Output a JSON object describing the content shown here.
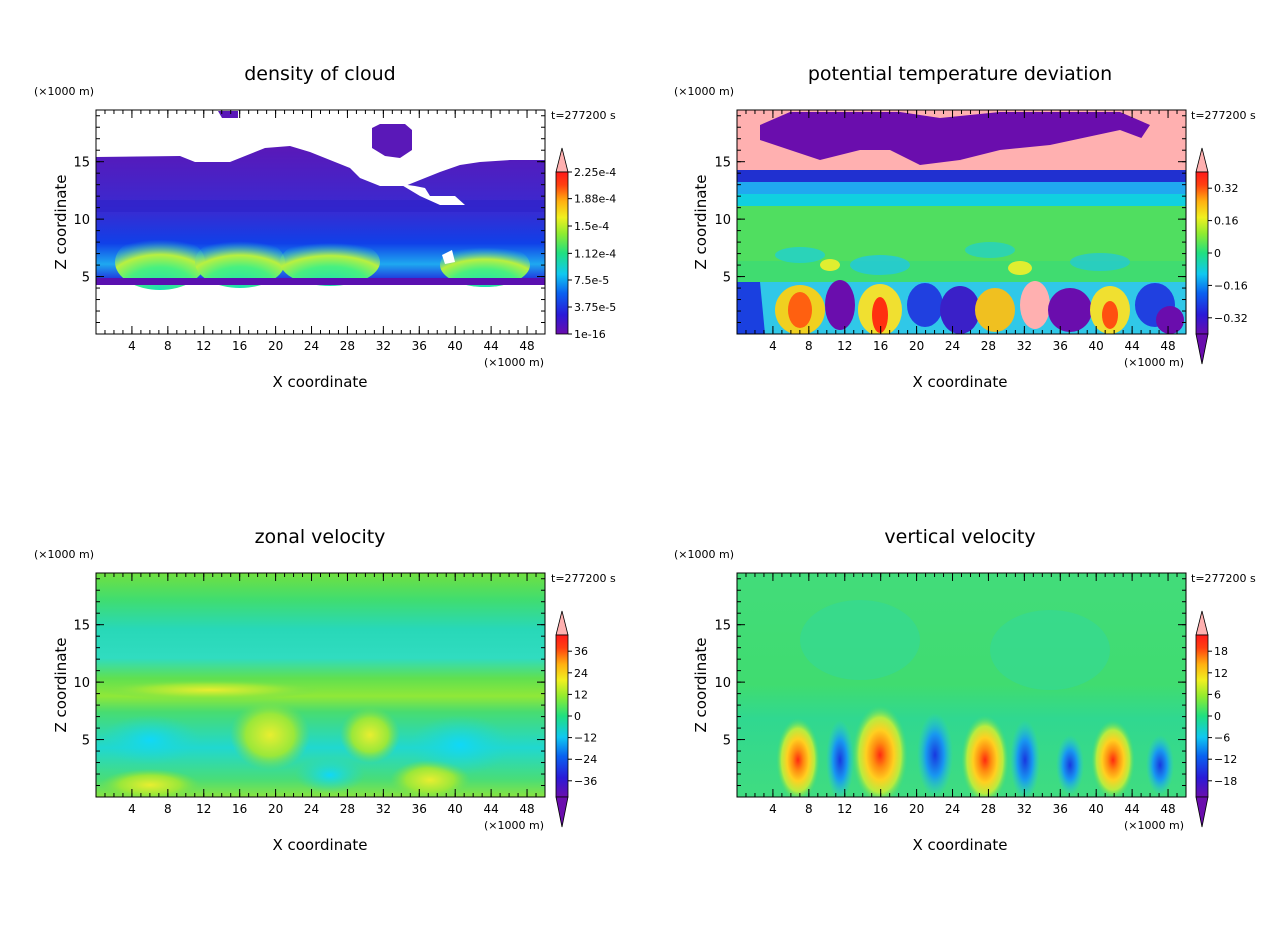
{
  "chart_data": [
    {
      "type": "heatmap",
      "title": "density of cloud",
      "xlabel": "X coordinate",
      "ylabel": "Z coordinate",
      "x_unit": "(×1000 m)",
      "y_unit": "(×1000 m)",
      "time_label": "t=277200 s",
      "xlim": [
        0,
        50
      ],
      "ylim": [
        0,
        19.5
      ],
      "x_ticks": [
        4,
        8,
        12,
        16,
        20,
        24,
        28,
        32,
        36,
        40,
        44,
        48
      ],
      "y_ticks": [
        5,
        10,
        15
      ],
      "colorbar_labels": [
        "1e-16",
        "3.75e-5",
        "7.5e-5",
        "1.12e-4",
        "1.5e-4",
        "1.88e-4",
        "2.25e-4"
      ],
      "colorbar_values": [
        1e-16,
        3.75e-05,
        7.5e-05,
        0.000112,
        0.00015,
        0.000188,
        0.000225
      ],
      "colors": {
        "low": "#6a0dad",
        "mid": "#00e0c0",
        "high": "#ff1a1a",
        "top": "#ffb0b0"
      }
    },
    {
      "type": "heatmap",
      "title": "potential temperature deviation",
      "xlabel": "X coordinate",
      "ylabel": "Z coordinate",
      "x_unit": "(×1000 m)",
      "y_unit": "(×1000 m)",
      "time_label": "t=277200 s",
      "xlim": [
        0,
        50
      ],
      "ylim": [
        0,
        19.5
      ],
      "x_ticks": [
        4,
        8,
        12,
        16,
        20,
        24,
        28,
        32,
        36,
        40,
        44,
        48
      ],
      "y_ticks": [
        5,
        10,
        15
      ],
      "colorbar_labels": [
        "−0.32",
        "−0.16",
        "0",
        "0.16",
        "0.32"
      ],
      "colorbar_values": [
        -0.32,
        -0.16,
        0,
        0.16,
        0.32
      ],
      "colors": {
        "low": "#6a0dad",
        "mid": "#33dd55",
        "high": "#ff1a1a",
        "top": "#ffb0b0"
      }
    },
    {
      "type": "heatmap",
      "title": "zonal velocity",
      "xlabel": "X coordinate",
      "ylabel": "Z coordinate",
      "x_unit": "(×1000 m)",
      "y_unit": "(×1000 m)",
      "time_label": "t=277200 s",
      "xlim": [
        0,
        50
      ],
      "ylim": [
        0,
        19.5
      ],
      "x_ticks": [
        4,
        8,
        12,
        16,
        20,
        24,
        28,
        32,
        36,
        40,
        44,
        48
      ],
      "y_ticks": [
        5,
        10,
        15
      ],
      "colorbar_labels": [
        "−36",
        "−24",
        "−12",
        "0",
        "12",
        "24",
        "36"
      ],
      "colorbar_values": [
        -36,
        -24,
        -12,
        0,
        12,
        24,
        36
      ],
      "colors": {
        "low": "#6a0dad",
        "mid": "#33dd55",
        "high": "#ff1a1a",
        "top": "#ffb0b0"
      }
    },
    {
      "type": "heatmap",
      "title": "vertical velocity",
      "xlabel": "X coordinate",
      "ylabel": "Z coordinate",
      "x_unit": "(×1000 m)",
      "y_unit": "(×1000 m)",
      "time_label": "t=277200 s",
      "xlim": [
        0,
        50
      ],
      "ylim": [
        0,
        19.5
      ],
      "x_ticks": [
        4,
        8,
        12,
        16,
        20,
        24,
        28,
        32,
        36,
        40,
        44,
        48
      ],
      "y_ticks": [
        5,
        10,
        15
      ],
      "colorbar_labels": [
        "−18",
        "−12",
        "−6",
        "0",
        "6",
        "12",
        "18"
      ],
      "colorbar_values": [
        -18,
        -12,
        -6,
        0,
        6,
        12,
        18
      ],
      "colors": {
        "low": "#6a0dad",
        "mid": "#33dd55",
        "high": "#ff1a1a",
        "top": "#ffb0b0"
      }
    }
  ]
}
